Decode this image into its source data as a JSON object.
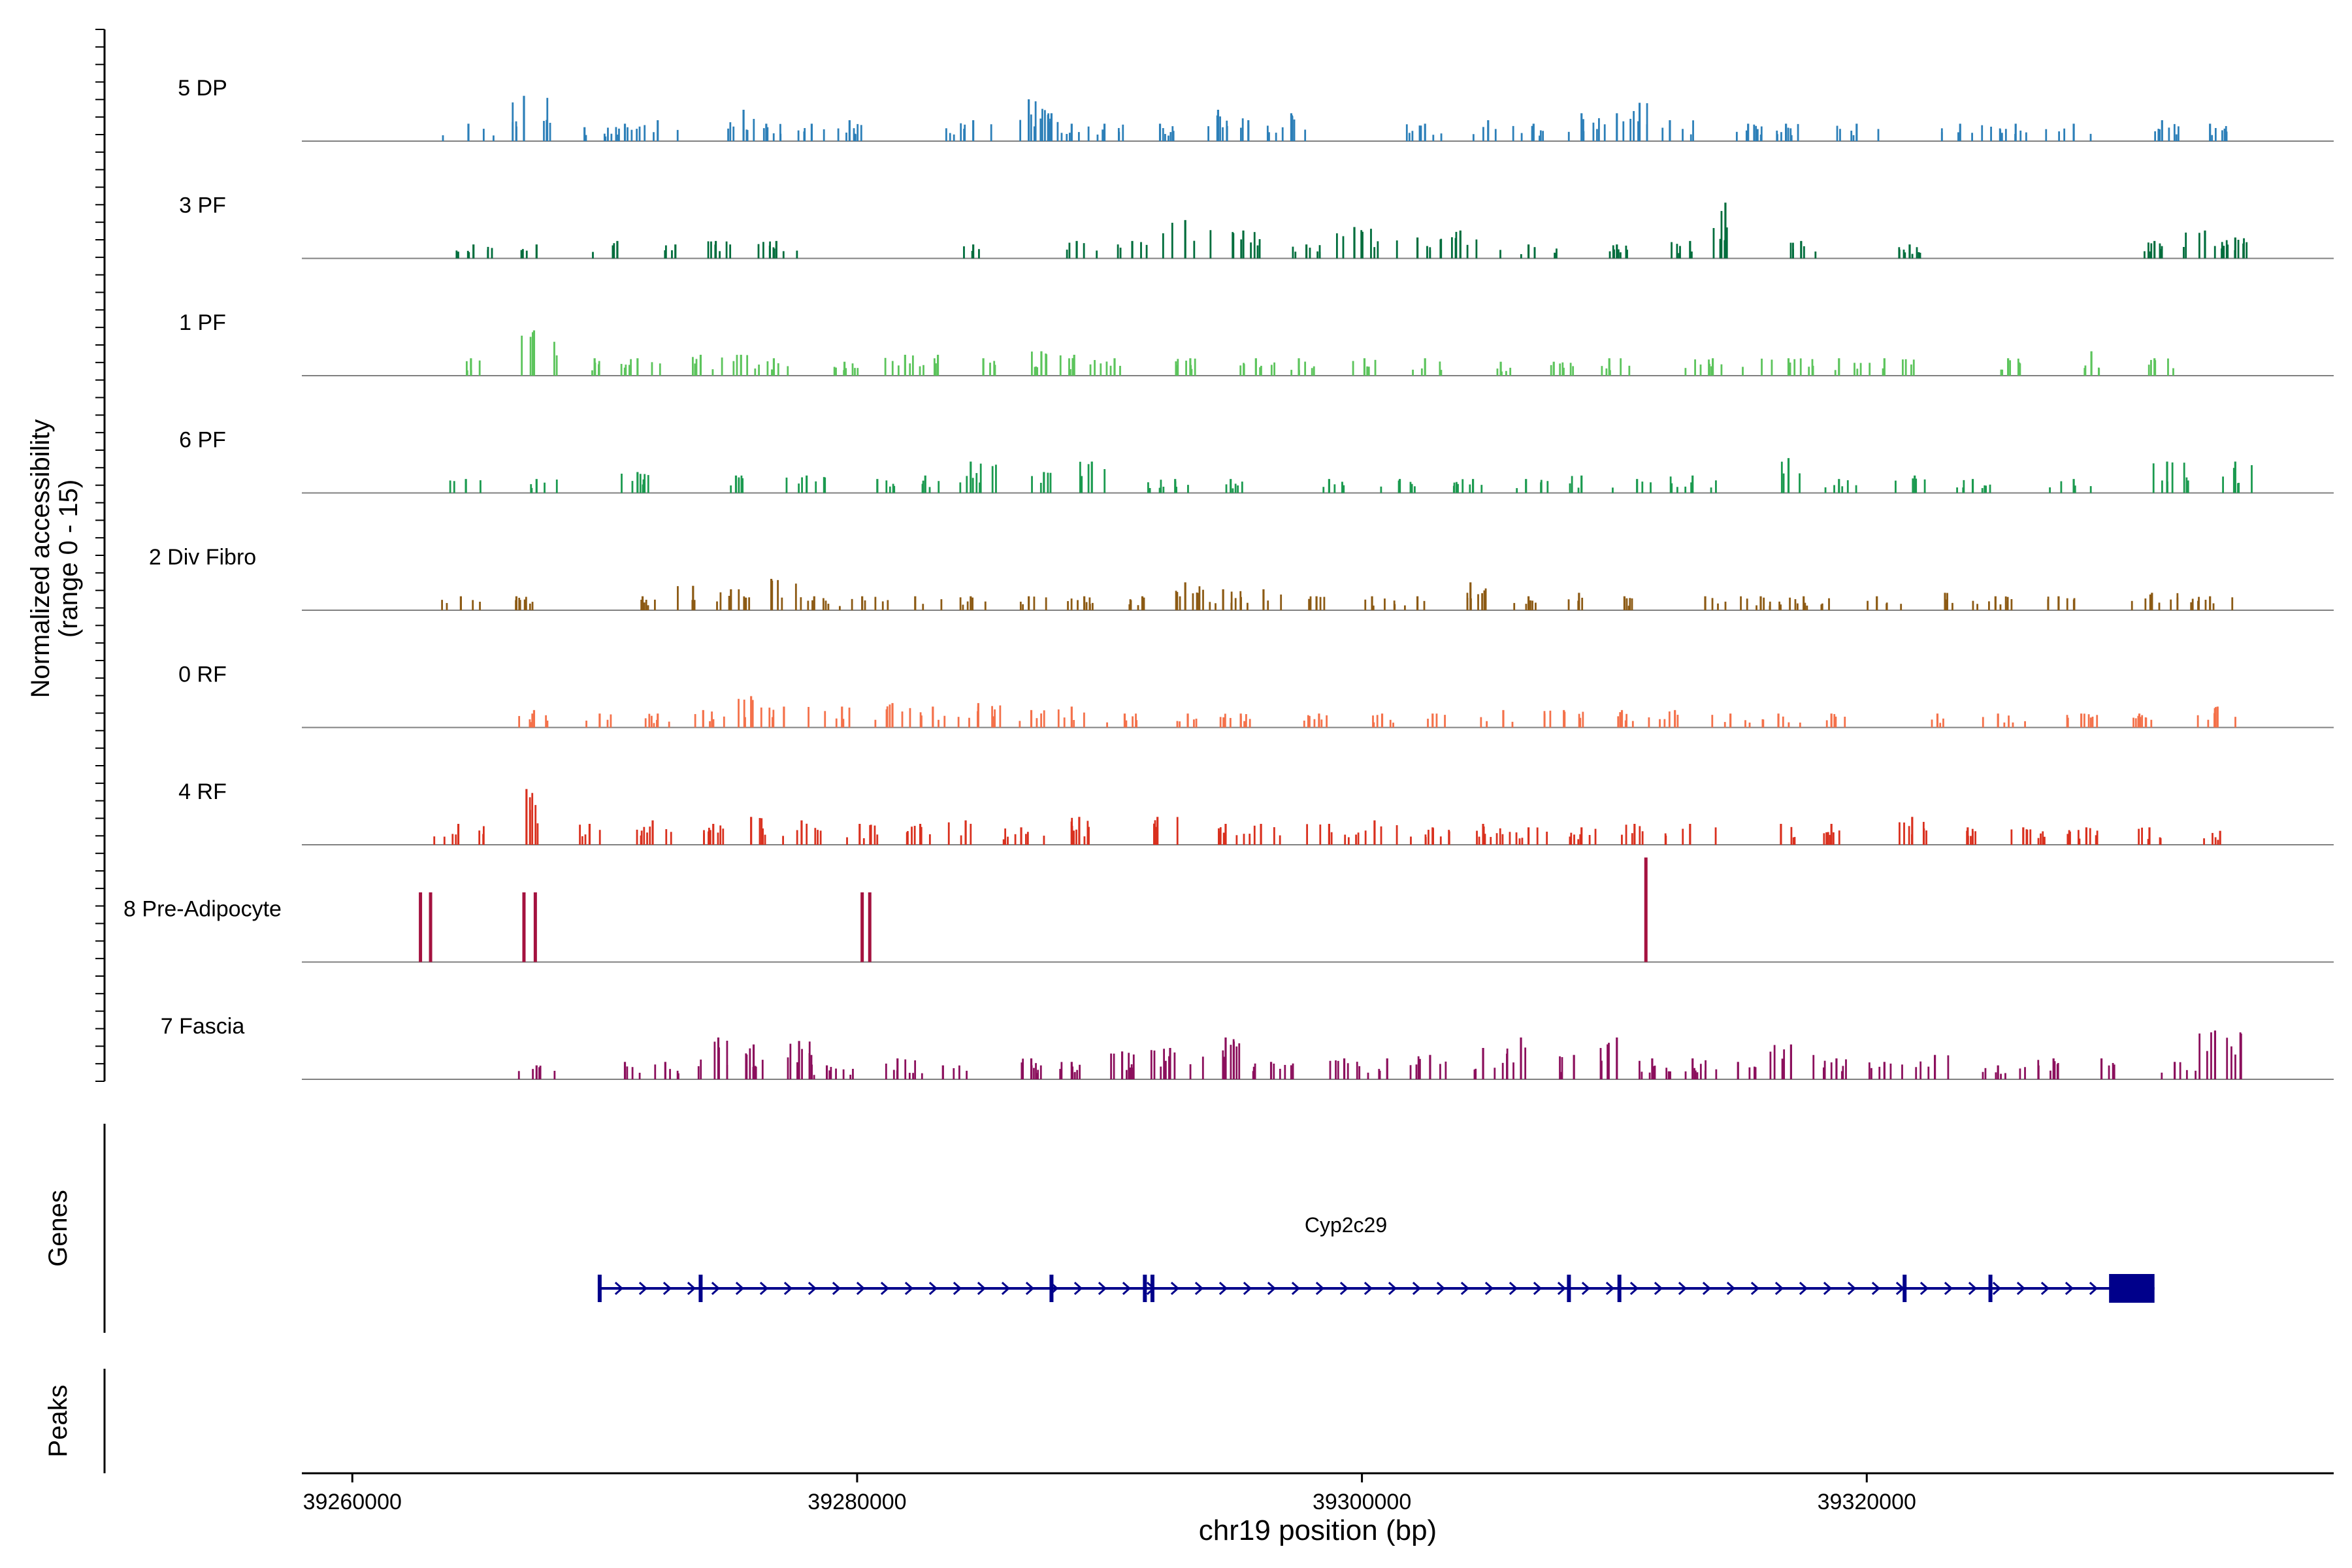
{
  "chart_data": {
    "type": "area",
    "title": "",
    "ylabel_line1": "Normalized accessibility",
    "ylabel_line2": "(range 0 - 15)",
    "ylim": [
      0,
      15
    ],
    "xlabel": "chr19 position (bp)",
    "xlim": [
      39258000,
      39338500
    ],
    "x_ticks": [
      39260000,
      39280000,
      39300000,
      39320000
    ],
    "x_tick_labels": [
      "39260000",
      "39280000",
      "39300000",
      "39320000"
    ],
    "tracks": [
      {
        "name": "5 DP",
        "color": "#2c7fb8",
        "peaks": [
          [
            39264600,
            2.5
          ],
          [
            39266800,
            6.5
          ],
          [
            39269200,
            2
          ],
          [
            39270800,
            2.5
          ],
          [
            39272100,
            3
          ],
          [
            39275500,
            4.5
          ],
          [
            39276400,
            2.5
          ],
          [
            39278200,
            2.5
          ],
          [
            39279700,
            3
          ],
          [
            39284600,
            3
          ],
          [
            39286800,
            6
          ],
          [
            39287700,
            4
          ],
          [
            39288500,
            2.5
          ],
          [
            39289800,
            2.5
          ],
          [
            39292000,
            2.5
          ],
          [
            39294300,
            4.5
          ],
          [
            39295500,
            3
          ],
          [
            39297200,
            4
          ],
          [
            39302500,
            2.5
          ],
          [
            39305000,
            3
          ],
          [
            39306800,
            2.5
          ],
          [
            39308700,
            4
          ],
          [
            39310100,
            4
          ],
          [
            39311000,
            5.5
          ],
          [
            39312200,
            3
          ],
          [
            39315300,
            2.5
          ],
          [
            39316800,
            2.5
          ],
          [
            39319600,
            2.5
          ],
          [
            39323700,
            2.5
          ],
          [
            39325900,
            2.5
          ],
          [
            39328200,
            2.5
          ],
          [
            39331700,
            3
          ],
          [
            39333600,
            2.5
          ]
        ]
      },
      {
        "name": "3 PF",
        "color": "#006d3c",
        "peaks": [
          [
            39264800,
            2
          ],
          [
            39267300,
            2
          ],
          [
            39270500,
            2.5
          ],
          [
            39272800,
            2
          ],
          [
            39274400,
            2.5
          ],
          [
            39276800,
            2.5
          ],
          [
            39284600,
            2
          ],
          [
            39288700,
            2.5
          ],
          [
            39290900,
            2.5
          ],
          [
            39293000,
            5.5
          ],
          [
            39295300,
            4
          ],
          [
            39297800,
            2
          ],
          [
            39299700,
            4.5
          ],
          [
            39302200,
            3
          ],
          [
            39303900,
            4
          ],
          [
            39306600,
            2
          ],
          [
            39310100,
            2
          ],
          [
            39313000,
            2.5
          ],
          [
            39314400,
            8
          ],
          [
            39317400,
            2.5
          ],
          [
            39321700,
            2
          ],
          [
            39331400,
            2.5
          ],
          [
            39333400,
            4
          ],
          [
            39334600,
            3
          ]
        ]
      },
      {
        "name": "1 PF",
        "color": "#5cc45c",
        "peaks": [
          [
            39264700,
            2.5
          ],
          [
            39267200,
            6.5
          ],
          [
            39269600,
            2.5
          ],
          [
            39271300,
            2.5
          ],
          [
            39273800,
            3
          ],
          [
            39275400,
            3
          ],
          [
            39276700,
            2.5
          ],
          [
            39279500,
            2
          ],
          [
            39281900,
            3
          ],
          [
            39283200,
            3
          ],
          [
            39285000,
            2.5
          ],
          [
            39287300,
            3.5
          ],
          [
            39288600,
            3
          ],
          [
            39290200,
            2.5
          ],
          [
            39293200,
            2.5
          ],
          [
            39295800,
            2.5
          ],
          [
            39297500,
            2.5
          ],
          [
            39300100,
            2.5
          ],
          [
            39302500,
            2.5
          ],
          [
            39305500,
            2
          ],
          [
            39307600,
            2
          ],
          [
            39309800,
            2.5
          ],
          [
            39313900,
            2.5
          ],
          [
            39316900,
            2.5
          ],
          [
            39318900,
            2.5
          ],
          [
            39320700,
            2.5
          ],
          [
            39325600,
            2.5
          ],
          [
            39328900,
            3.5
          ],
          [
            39331400,
            2.5
          ]
        ]
      },
      {
        "name": "6 PF",
        "color": "#1b9a4f",
        "peaks": [
          [
            39264500,
            2
          ],
          [
            39267300,
            2
          ],
          [
            39271300,
            3
          ],
          [
            39275200,
            2.5
          ],
          [
            39278000,
            2.5
          ],
          [
            39280800,
            2
          ],
          [
            39282700,
            2.5
          ],
          [
            39284500,
            4.5
          ],
          [
            39287400,
            3
          ],
          [
            39289300,
            4.5
          ],
          [
            39292600,
            2
          ],
          [
            39294800,
            2
          ],
          [
            39298700,
            2
          ],
          [
            39301500,
            2
          ],
          [
            39304400,
            2
          ],
          [
            39306500,
            2
          ],
          [
            39308700,
            2.5
          ],
          [
            39310900,
            2
          ],
          [
            39313100,
            2.5
          ],
          [
            39316900,
            5
          ],
          [
            39318900,
            2
          ],
          [
            39321900,
            2.5
          ],
          [
            39324200,
            2
          ],
          [
            39328200,
            2
          ],
          [
            39331900,
            4.5
          ],
          [
            39334600,
            4.5
          ]
        ]
      },
      {
        "name": "2 Div Fibro",
        "color": "#8c5a14",
        "peaks": [
          [
            39264300,
            2
          ],
          [
            39266500,
            2
          ],
          [
            39271500,
            2
          ],
          [
            39273500,
            3.5
          ],
          [
            39275000,
            3
          ],
          [
            39276600,
            4.5
          ],
          [
            39278300,
            2
          ],
          [
            39280200,
            2
          ],
          [
            39282300,
            2
          ],
          [
            39284500,
            2
          ],
          [
            39286800,
            2
          ],
          [
            39289000,
            2
          ],
          [
            39291300,
            2
          ],
          [
            39293000,
            4
          ],
          [
            39294500,
            3
          ],
          [
            39296100,
            3
          ],
          [
            39298200,
            2
          ],
          [
            39300400,
            2
          ],
          [
            39302200,
            2
          ],
          [
            39304300,
            4
          ],
          [
            39306600,
            2
          ],
          [
            39308600,
            2.5
          ],
          [
            39310400,
            2
          ],
          [
            39313600,
            2
          ],
          [
            39315800,
            2
          ],
          [
            39317500,
            2
          ],
          [
            39320400,
            2
          ],
          [
            39323100,
            2.5
          ],
          [
            39325100,
            2
          ],
          [
            39327600,
            2
          ],
          [
            39331300,
            2.5
          ],
          [
            39333600,
            2
          ]
        ]
      },
      {
        "name": "0 RF",
        "color": "#f4714a",
        "peaks": [
          [
            39267200,
            2.5
          ],
          [
            39269800,
            2
          ],
          [
            39272100,
            2
          ],
          [
            39273900,
            2.5
          ],
          [
            39275800,
            4.5
          ],
          [
            39277100,
            3
          ],
          [
            39279400,
            3
          ],
          [
            39281400,
            3.5
          ],
          [
            39283000,
            3
          ],
          [
            39284800,
            3.5
          ],
          [
            39286900,
            2.5
          ],
          [
            39288500,
            3
          ],
          [
            39290600,
            2
          ],
          [
            39293100,
            2
          ],
          [
            39295200,
            2
          ],
          [
            39298300,
            2
          ],
          [
            39300800,
            2
          ],
          [
            39302800,
            2
          ],
          [
            39305600,
            2.5
          ],
          [
            39308000,
            2.5
          ],
          [
            39310300,
            2.5
          ],
          [
            39312400,
            2.5
          ],
          [
            39314600,
            2
          ],
          [
            39316500,
            2
          ],
          [
            39318600,
            2
          ],
          [
            39322800,
            2
          ],
          [
            39325200,
            2
          ],
          [
            39328500,
            2
          ],
          [
            39330800,
            2
          ],
          [
            39333900,
            3
          ]
        ]
      },
      {
        "name": "4 RF",
        "color": "#d9301e",
        "peaks": [
          [
            39264200,
            3
          ],
          [
            39266900,
            8
          ],
          [
            39269400,
            3
          ],
          [
            39271900,
            3.5
          ],
          [
            39274300,
            3
          ],
          [
            39275800,
            4
          ],
          [
            39277800,
            3.5
          ],
          [
            39280100,
            3
          ],
          [
            39282500,
            3
          ],
          [
            39284300,
            3.5
          ],
          [
            39286500,
            2.5
          ],
          [
            39288800,
            4
          ],
          [
            39291900,
            4
          ],
          [
            39294600,
            3
          ],
          [
            39296000,
            3
          ],
          [
            39298700,
            3
          ],
          [
            39300500,
            3.5
          ],
          [
            39302800,
            2.5
          ],
          [
            39304800,
            3
          ],
          [
            39306600,
            2.5
          ],
          [
            39308700,
            2.5
          ],
          [
            39310800,
            3
          ],
          [
            39313000,
            3
          ],
          [
            39316600,
            3
          ],
          [
            39318600,
            3
          ],
          [
            39321800,
            4
          ],
          [
            39324000,
            2.5
          ],
          [
            39326200,
            2.5
          ],
          [
            39328700,
            2.5
          ],
          [
            39331200,
            2.5
          ],
          [
            39334000,
            2
          ]
        ]
      },
      {
        "name": "8 Pre-Adipocyte",
        "color": "#a4123f",
        "peaks": [
          [
            39262700,
            10
          ],
          [
            39263100,
            10
          ],
          [
            39266800,
            10
          ],
          [
            39267250,
            10
          ],
          [
            39280200,
            10
          ],
          [
            39280500,
            10
          ],
          [
            39311250,
            15
          ]
        ]
      },
      {
        "name": "7 Fascia",
        "color": "#8b0f5c",
        "peaks": [
          [
            39267300,
            2
          ],
          [
            39270800,
            2.5
          ],
          [
            39272400,
            2.5
          ],
          [
            39274500,
            6
          ],
          [
            39275900,
            5
          ],
          [
            39277700,
            5.5
          ],
          [
            39278800,
            2
          ],
          [
            39281600,
            3
          ],
          [
            39283400,
            2
          ],
          [
            39286900,
            3
          ],
          [
            39288500,
            2.5
          ],
          [
            39290500,
            4
          ],
          [
            39292400,
            4.5
          ],
          [
            39294600,
            6
          ],
          [
            39296400,
            2.5
          ],
          [
            39299300,
            3
          ],
          [
            39301000,
            3
          ],
          [
            39302700,
            3.5
          ],
          [
            39304800,
            4.5
          ],
          [
            39306300,
            6
          ],
          [
            39308400,
            3.5
          ],
          [
            39310100,
            6
          ],
          [
            39311500,
            3
          ],
          [
            39313100,
            3
          ],
          [
            39314900,
            2.5
          ],
          [
            39317000,
            5
          ],
          [
            39318800,
            3
          ],
          [
            39320700,
            2.5
          ],
          [
            39322700,
            3.5
          ],
          [
            39325200,
            2
          ],
          [
            39327400,
            3
          ],
          [
            39329300,
            3
          ],
          [
            39332200,
            2.5
          ],
          [
            39333800,
            7
          ]
        ]
      }
    ],
    "genes_label": "Genes",
    "gene": {
      "name": "Cyp2c29",
      "start": 39269800,
      "end": 39331400,
      "strand": "+",
      "color": "#00008b",
      "exons": [
        39269800,
        39273800,
        39287700,
        39291400,
        39291700,
        39308200,
        39310200,
        39321500,
        39324900
      ],
      "final_exon": [
        39329600,
        39331400
      ]
    },
    "peaks_label": "Peaks",
    "baseline_color": "#808080"
  }
}
